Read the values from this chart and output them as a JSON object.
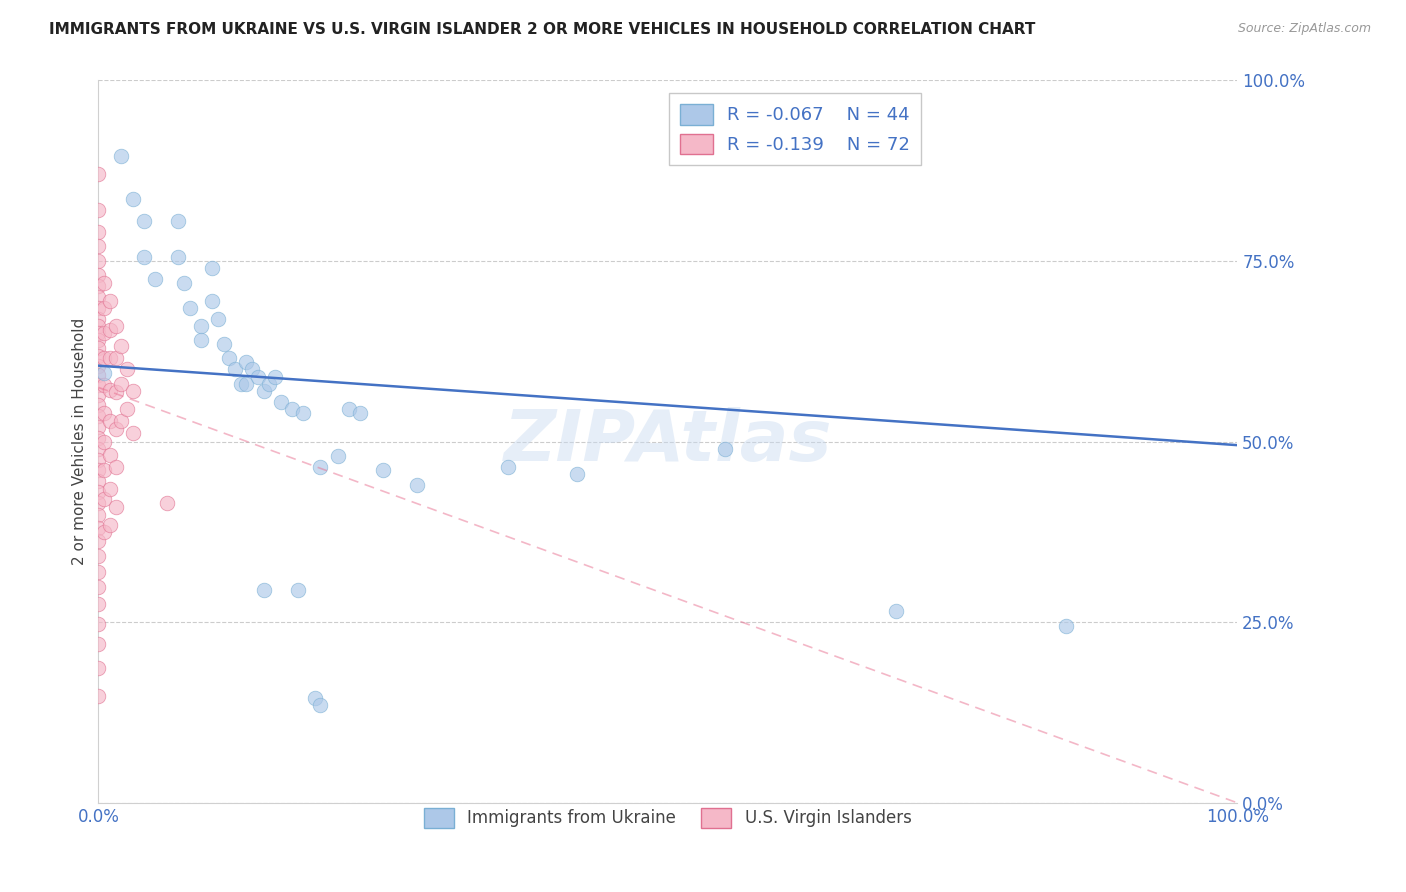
{
  "title": "IMMIGRANTS FROM UKRAINE VS U.S. VIRGIN ISLANDER 2 OR MORE VEHICLES IN HOUSEHOLD CORRELATION CHART",
  "source": "Source: ZipAtlas.com",
  "ylabel": "2 or more Vehicles in Household",
  "xlim": [
    0.0,
    1.0
  ],
  "ylim": [
    0.0,
    1.0
  ],
  "yticks": [
    0.0,
    0.25,
    0.5,
    0.75,
    1.0
  ],
  "ytick_labels": [
    "0.0%",
    "25.0%",
    "50.0%",
    "75.0%",
    "100.0%"
  ],
  "xticks": [
    0.0,
    1.0
  ],
  "xtick_labels": [
    "0.0%",
    "100.0%"
  ],
  "legend_ukraine_R": "-0.067",
  "legend_ukraine_N": "44",
  "legend_virgin_R": "-0.139",
  "legend_virgin_N": "72",
  "ukraine_color": "#adc8e8",
  "virgin_color": "#f5b8c8",
  "ukraine_edge": "#7aafd4",
  "virgin_edge": "#e07090",
  "trendline_ukraine_color": "#4472c4",
  "trendline_virgin_color": "#e87090",
  "background_color": "#ffffff",
  "watermark": "ZIPAtlas",
  "ukraine_scatter": [
    [
      0.005,
      0.595
    ],
    [
      0.02,
      0.895
    ],
    [
      0.03,
      0.835
    ],
    [
      0.04,
      0.805
    ],
    [
      0.04,
      0.755
    ],
    [
      0.05,
      0.725
    ],
    [
      0.07,
      0.805
    ],
    [
      0.07,
      0.755
    ],
    [
      0.075,
      0.72
    ],
    [
      0.08,
      0.685
    ],
    [
      0.09,
      0.66
    ],
    [
      0.09,
      0.64
    ],
    [
      0.1,
      0.74
    ],
    [
      0.1,
      0.695
    ],
    [
      0.105,
      0.67
    ],
    [
      0.11,
      0.635
    ],
    [
      0.115,
      0.615
    ],
    [
      0.12,
      0.6
    ],
    [
      0.125,
      0.58
    ],
    [
      0.13,
      0.61
    ],
    [
      0.13,
      0.58
    ],
    [
      0.135,
      0.6
    ],
    [
      0.14,
      0.59
    ],
    [
      0.145,
      0.57
    ],
    [
      0.15,
      0.58
    ],
    [
      0.16,
      0.555
    ],
    [
      0.17,
      0.545
    ],
    [
      0.18,
      0.54
    ],
    [
      0.195,
      0.465
    ],
    [
      0.21,
      0.48
    ],
    [
      0.22,
      0.545
    ],
    [
      0.23,
      0.54
    ],
    [
      0.25,
      0.46
    ],
    [
      0.28,
      0.44
    ],
    [
      0.36,
      0.465
    ],
    [
      0.42,
      0.455
    ],
    [
      0.55,
      0.49
    ],
    [
      0.7,
      0.265
    ],
    [
      0.145,
      0.295
    ],
    [
      0.175,
      0.295
    ],
    [
      0.19,
      0.145
    ],
    [
      0.195,
      0.135
    ],
    [
      0.155,
      0.59
    ],
    [
      0.85,
      0.245
    ]
  ],
  "virgin_scatter": [
    [
      0.0,
      0.87
    ],
    [
      0.0,
      0.82
    ],
    [
      0.0,
      0.79
    ],
    [
      0.0,
      0.77
    ],
    [
      0.0,
      0.75
    ],
    [
      0.0,
      0.73
    ],
    [
      0.0,
      0.715
    ],
    [
      0.0,
      0.7
    ],
    [
      0.0,
      0.685
    ],
    [
      0.0,
      0.67
    ],
    [
      0.0,
      0.66
    ],
    [
      0.0,
      0.65
    ],
    [
      0.0,
      0.64
    ],
    [
      0.0,
      0.63
    ],
    [
      0.0,
      0.618
    ],
    [
      0.0,
      0.605
    ],
    [
      0.0,
      0.592
    ],
    [
      0.0,
      0.578
    ],
    [
      0.0,
      0.565
    ],
    [
      0.0,
      0.55
    ],
    [
      0.0,
      0.535
    ],
    [
      0.0,
      0.52
    ],
    [
      0.0,
      0.505
    ],
    [
      0.0,
      0.49
    ],
    [
      0.0,
      0.475
    ],
    [
      0.0,
      0.46
    ],
    [
      0.0,
      0.445
    ],
    [
      0.0,
      0.43
    ],
    [
      0.0,
      0.415
    ],
    [
      0.0,
      0.398
    ],
    [
      0.0,
      0.38
    ],
    [
      0.0,
      0.362
    ],
    [
      0.0,
      0.342
    ],
    [
      0.0,
      0.32
    ],
    [
      0.0,
      0.298
    ],
    [
      0.0,
      0.275
    ],
    [
      0.0,
      0.248
    ],
    [
      0.0,
      0.22
    ],
    [
      0.0,
      0.187
    ],
    [
      0.0,
      0.148
    ],
    [
      0.005,
      0.72
    ],
    [
      0.005,
      0.685
    ],
    [
      0.005,
      0.65
    ],
    [
      0.005,
      0.615
    ],
    [
      0.005,
      0.578
    ],
    [
      0.005,
      0.54
    ],
    [
      0.005,
      0.5
    ],
    [
      0.005,
      0.46
    ],
    [
      0.005,
      0.42
    ],
    [
      0.005,
      0.375
    ],
    [
      0.01,
      0.695
    ],
    [
      0.01,
      0.655
    ],
    [
      0.01,
      0.615
    ],
    [
      0.01,
      0.572
    ],
    [
      0.01,
      0.528
    ],
    [
      0.01,
      0.482
    ],
    [
      0.01,
      0.435
    ],
    [
      0.01,
      0.385
    ],
    [
      0.015,
      0.66
    ],
    [
      0.015,
      0.615
    ],
    [
      0.015,
      0.568
    ],
    [
      0.015,
      0.518
    ],
    [
      0.015,
      0.465
    ],
    [
      0.015,
      0.41
    ],
    [
      0.02,
      0.632
    ],
    [
      0.02,
      0.58
    ],
    [
      0.02,
      0.528
    ],
    [
      0.025,
      0.6
    ],
    [
      0.025,
      0.545
    ],
    [
      0.03,
      0.57
    ],
    [
      0.03,
      0.512
    ],
    [
      0.06,
      0.415
    ]
  ],
  "trendline_ukraine": [
    [
      0.0,
      0.605
    ],
    [
      1.0,
      0.495
    ]
  ],
  "trendline_virgin": [
    [
      0.0,
      0.575
    ],
    [
      1.0,
      0.0
    ]
  ]
}
